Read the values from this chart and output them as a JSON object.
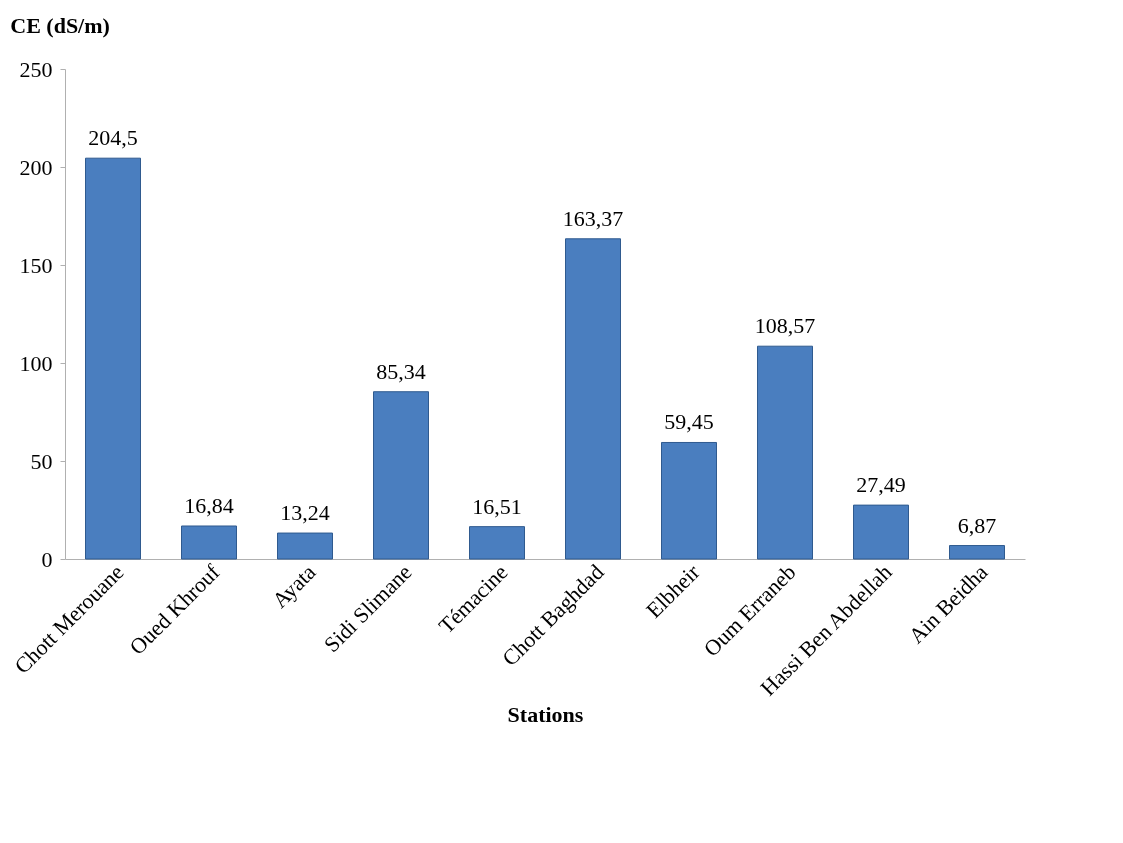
{
  "chart_data": {
    "type": "bar",
    "ylabel": "CE (dS/m)",
    "xlabel": "Stations",
    "categories": [
      "Chott Merouane",
      "Oued Khrouf",
      "Ayata",
      "Sidi Slimane",
      "Témacine",
      "Chott Baghdad",
      "Elbheir",
      "Oum Erraneb",
      "Hassi Ben Abdellah",
      "Ain Beidha"
    ],
    "values": [
      204.5,
      16.84,
      13.24,
      85.34,
      16.51,
      163.37,
      59.45,
      108.57,
      27.49,
      6.87
    ],
    "value_labels": [
      "204,5",
      "16,84",
      "13,24",
      "85,34",
      "16,51",
      "163,37",
      "59,45",
      "108,57",
      "27,49",
      "6,87"
    ],
    "color": "#4a7ebf",
    "ylim": [
      0,
      250
    ],
    "yticks": [
      0,
      50,
      100,
      150,
      200,
      250
    ],
    "grid": false
  }
}
